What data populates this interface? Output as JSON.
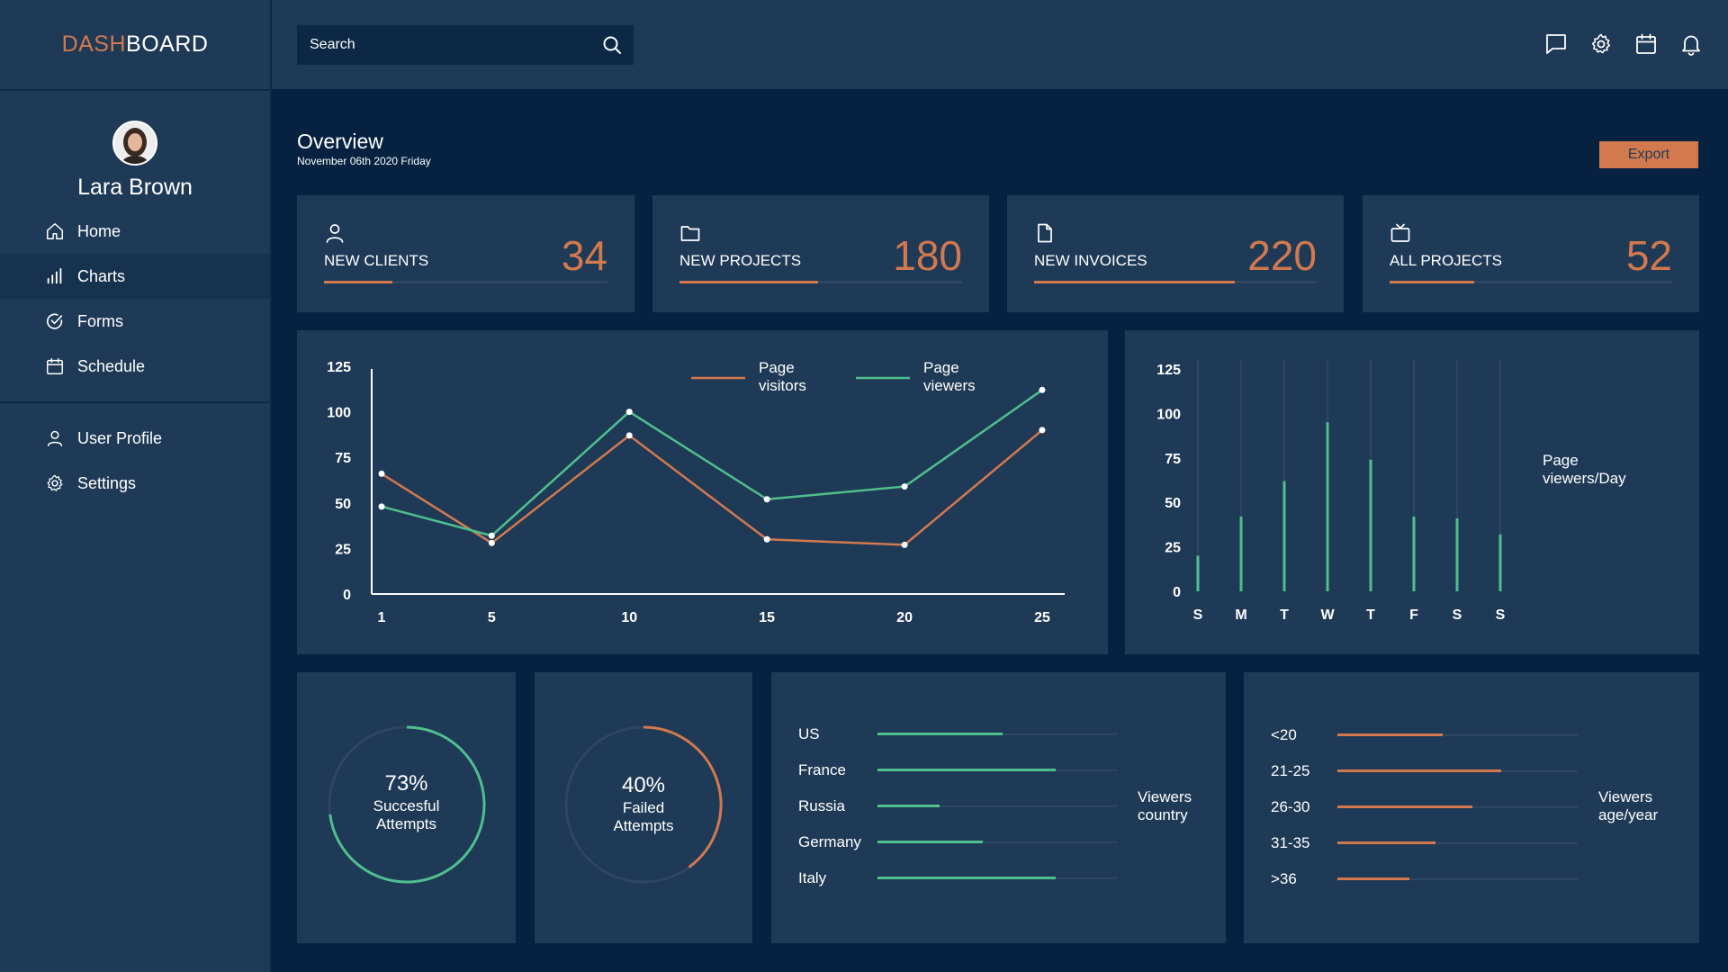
{
  "brand": {
    "accent": "DASH",
    "rest": "BOARD"
  },
  "search": {
    "placeholder": "Search"
  },
  "user": {
    "name": "Lara Brown"
  },
  "nav": {
    "home": "Home",
    "charts": "Charts",
    "forms": "Forms",
    "schedule": "Schedule",
    "user_profile": "User Profile",
    "settings": "Settings"
  },
  "overview": {
    "title": "Overview",
    "date": "November 06th 2020 Friday",
    "export_label": "Export"
  },
  "stats": [
    {
      "label": "NEW CLIENTS",
      "value": "34",
      "progress": 0.24
    },
    {
      "label": "NEW PROJECTS",
      "value": "180",
      "progress": 0.49
    },
    {
      "label": "NEW INVOICES",
      "value": "220",
      "progress": 0.71
    },
    {
      "label": "ALL PROJECTS",
      "value": "52",
      "progress": 0.3
    }
  ],
  "colors": {
    "accent": "#d2794e",
    "green": "#4fbf8e",
    "panel": "#1f3a56",
    "background": "#062240"
  },
  "icons": {
    "chat": "chat-icon",
    "settings": "gear-icon",
    "calendar": "calendar-icon",
    "notifications": "bell-icon"
  },
  "chart_data": [
    {
      "type": "line",
      "x": [
        1,
        5,
        10,
        15,
        20,
        25
      ],
      "series": [
        {
          "name": "Page visitors",
          "color": "#d2794e",
          "values": [
            66,
            28,
            87,
            30,
            27,
            90
          ]
        },
        {
          "name": "Page viewers",
          "color": "#4fbf8e",
          "values": [
            48,
            32,
            100,
            52,
            59,
            112
          ]
        }
      ],
      "yticks": [
        0,
        25,
        50,
        75,
        100,
        125
      ],
      "xticks": [
        1,
        5,
        10,
        15,
        20,
        25
      ],
      "ylim": [
        0,
        125
      ],
      "legend_position": "top-right"
    },
    {
      "type": "bar",
      "title": "Page viewers/Day",
      "categories": [
        "S",
        "M",
        "T",
        "W",
        "T",
        "F",
        "S",
        "S"
      ],
      "values": [
        20,
        42,
        62,
        95,
        74,
        42,
        41,
        32
      ],
      "yticks": [
        0,
        25,
        50,
        75,
        100,
        125
      ],
      "ylim": [
        0,
        125
      ],
      "color": "#4fbf8e"
    },
    {
      "type": "pie",
      "label": "73%",
      "caption1": "Succesful",
      "caption2": "Attempts",
      "value": 73,
      "color": "#4fbf8e"
    },
    {
      "type": "pie",
      "label": "40%",
      "caption1": "Failed",
      "caption2": "Attempts",
      "value": 40,
      "color": "#d2794e"
    },
    {
      "type": "bar",
      "orientation": "horizontal",
      "title1": "Viewers",
      "title2": "country",
      "categories": [
        "US",
        "France",
        "Russia",
        "Germany",
        "Italy"
      ],
      "values": [
        0.52,
        0.74,
        0.26,
        0.44,
        0.74
      ],
      "color": "#4fbf8e"
    },
    {
      "type": "bar",
      "orientation": "horizontal",
      "title1": "Viewers",
      "title2": "age/year",
      "categories": [
        "<20",
        "21-25",
        "26-30",
        "31-35",
        ">36"
      ],
      "values": [
        0.44,
        0.68,
        0.56,
        0.41,
        0.3
      ],
      "color": "#d2794e"
    }
  ]
}
